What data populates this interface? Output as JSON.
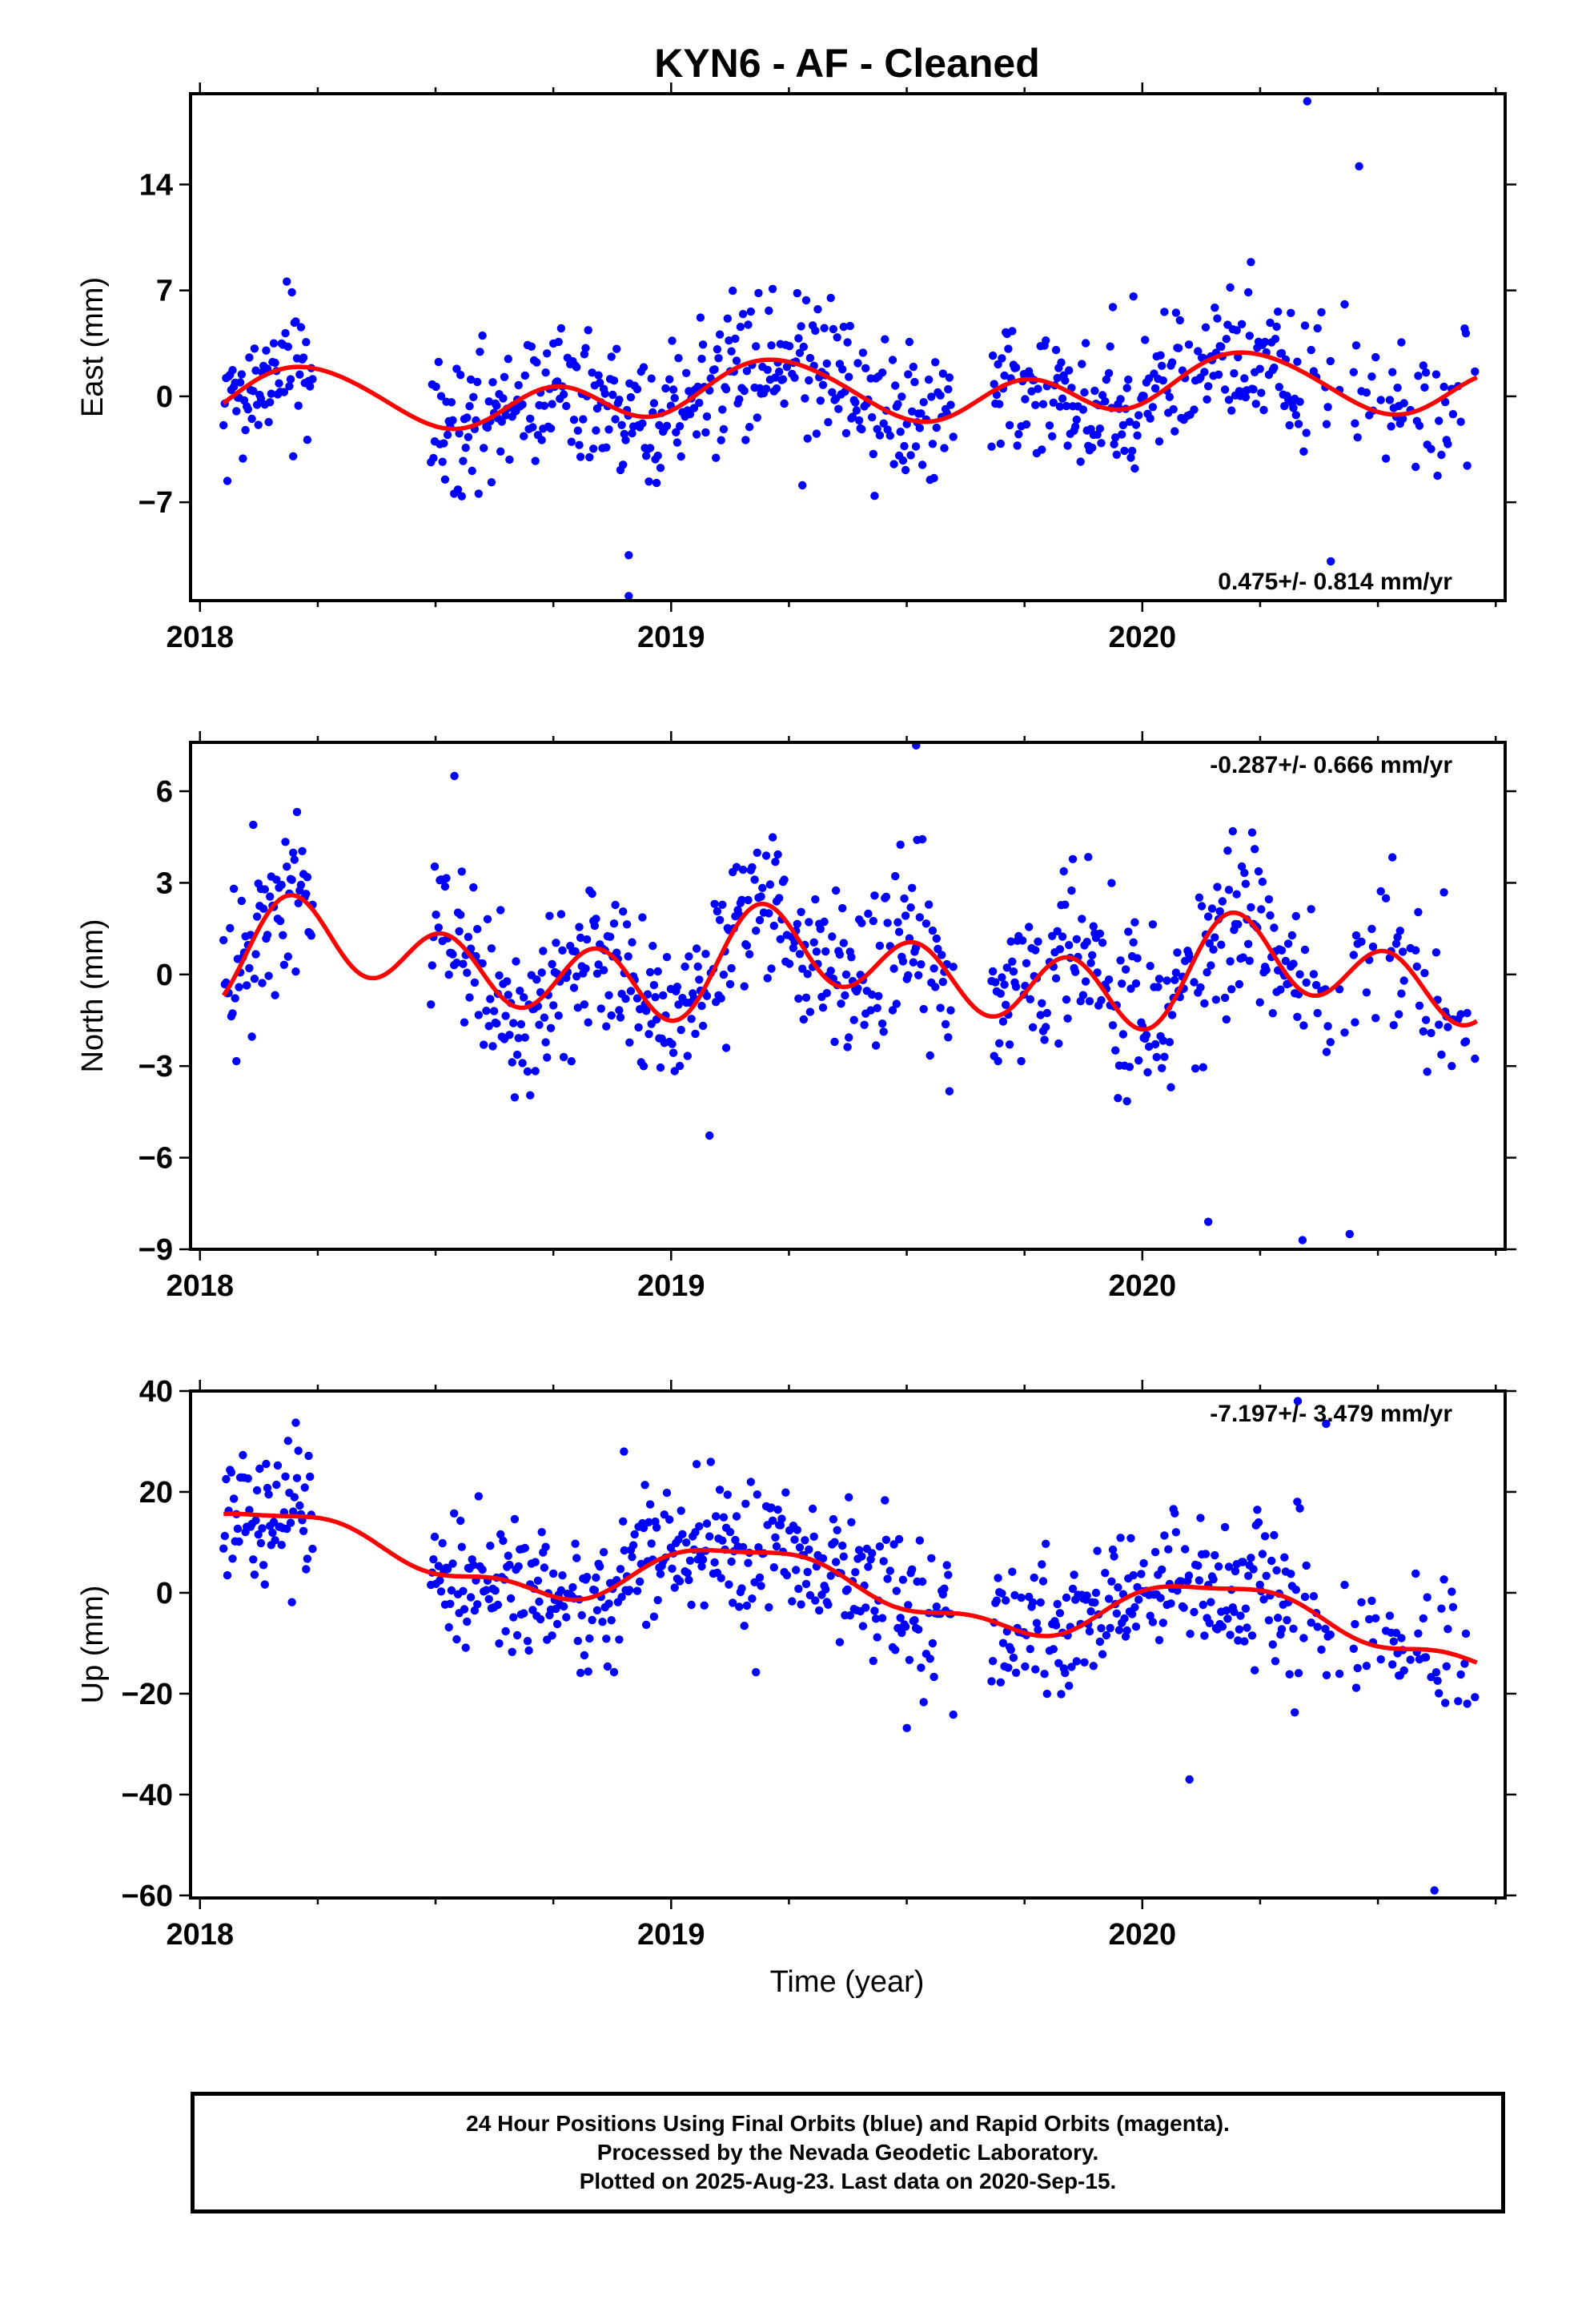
{
  "title": "KYN6  - AF - Cleaned",
  "xlabel": "Time (year)",
  "caption": {
    "line1": "24 Hour Positions Using Final Orbits (blue) and Rapid Orbits (magenta).",
    "line2": "Processed by the Nevada Geodetic Laboratory.",
    "line3": "Plotted on 2025-Aug-23. Last data on 2020-Sep-15."
  },
  "colors": {
    "data_points": "#0000ff",
    "fit_line": "#ff0000",
    "frame": "#000000"
  },
  "chart_data": [
    {
      "type": "scatter",
      "panel": "east",
      "ylabel": "East (mm)",
      "xlim": [
        2017.98,
        2020.77
      ],
      "ylim": [
        -13.5,
        20.0
      ],
      "xticks": [
        2018,
        2019,
        2020
      ],
      "yticks": [
        -7,
        0,
        7,
        14
      ],
      "rate_label": "0.475+/- 0.814 mm/yr",
      "rate_position": "bottom-right",
      "fit": {
        "offset": 0.2,
        "trend": 0.475,
        "a1": 0.5,
        "b1": 1.0,
        "a2": -1.4,
        "b2": 0.2,
        "a3": -0.1,
        "b3": 0.3
      },
      "scatter_sd": 2.3,
      "points_approx": 700,
      "series": [
        {
          "name": "Final Orbits",
          "color": "#0000ff"
        },
        {
          "name": "Fit",
          "color": "#ff0000"
        }
      ],
      "outliers": [
        [
          2020.35,
          19.5
        ],
        [
          2020.46,
          15.2
        ],
        [
          2018.91,
          -13.2
        ],
        [
          2018.91,
          -10.5
        ],
        [
          2020.4,
          -10.9
        ]
      ]
    },
    {
      "type": "scatter",
      "panel": "north",
      "ylabel": "North (mm)",
      "xlim": [
        2017.98,
        2020.77
      ],
      "ylim": [
        -9.0,
        7.6
      ],
      "xticks": [
        2018,
        2019,
        2020
      ],
      "yticks": [
        -9,
        -6,
        -3,
        0,
        3,
        6
      ],
      "rate_label": "-0.287+/- 0.666 mm/yr",
      "rate_position": "top-right",
      "fit": {
        "offset": 0.15,
        "trend": -0.287,
        "a1": -0.2,
        "b1": 0.7,
        "a2": -0.4,
        "b2": 0.1,
        "a3": -1.15,
        "b3": -0.35
      },
      "scatter_sd": 1.35,
      "points_approx": 700,
      "series": [
        {
          "name": "Final Orbits",
          "color": "#0000ff"
        },
        {
          "name": "Fit",
          "color": "#ff0000"
        }
      ],
      "outliers": [
        [
          2019.52,
          7.5
        ],
        [
          2018.54,
          6.5
        ],
        [
          2020.34,
          -8.7
        ],
        [
          2020.44,
          -8.5
        ],
        [
          2020.14,
          -8.1
        ]
      ]
    },
    {
      "type": "scatter",
      "panel": "up",
      "ylabel": "Up (mm)",
      "xlim": [
        2017.98,
        2020.77
      ],
      "ylim": [
        -60.5,
        40.0
      ],
      "xticks": [
        2018,
        2019,
        2020
      ],
      "yticks": [
        -60,
        -40,
        -20,
        0,
        20,
        40
      ],
      "rate_label": "-7.197+/- 3.479 mm/yr",
      "rate_position": "top-right",
      "fit": {
        "offset": 1.5,
        "trend": -7.197,
        "a1": 2.5,
        "b1": 5.5,
        "a2": 0.2,
        "b2": 1.0,
        "a3": 1.2,
        "b3": -0.5
      },
      "scatter_sd": 7.0,
      "points_approx": 700,
      "series": [
        {
          "name": "Final Orbits",
          "color": "#0000ff"
        },
        {
          "name": "Fit",
          "color": "#ff0000"
        }
      ],
      "outliers": [
        [
          2020.33,
          38.0
        ],
        [
          2020.39,
          33.5
        ],
        [
          2020.62,
          -59.0
        ],
        [
          2018.9,
          28.0
        ],
        [
          2020.1,
          -37.0
        ]
      ]
    }
  ]
}
